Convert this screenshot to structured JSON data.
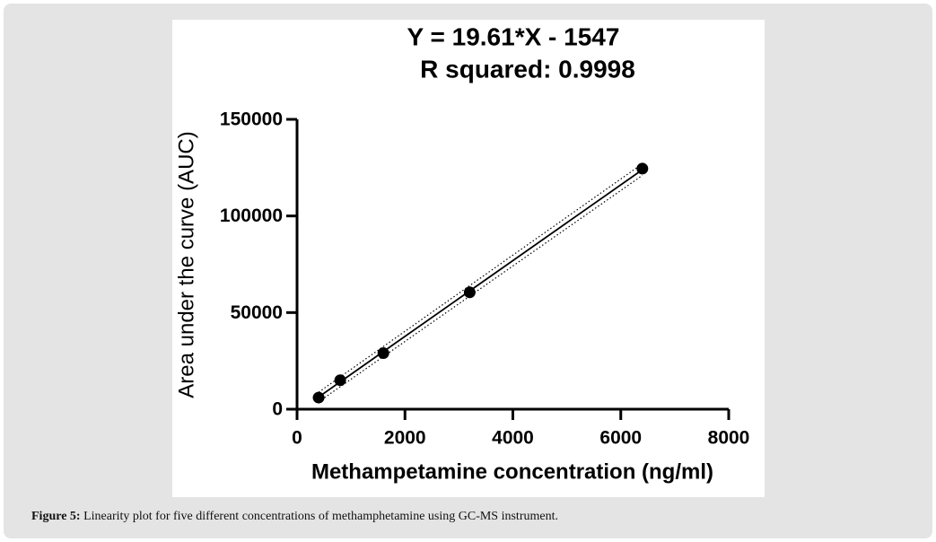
{
  "chart_data": {
    "type": "scatter",
    "title": "Y = 19.61*X - 1547",
    "subtitle": "R squared: 0.9998",
    "x_label": "Methampetamine concentration (ng/ml)",
    "y_label": "Area under the curve (AUC)",
    "x": [
      400,
      800,
      1600,
      3200,
      6400
    ],
    "values": [
      6000,
      15000,
      29000,
      60500,
      124500
    ],
    "color": "#000000",
    "fit": {
      "x": [
        400,
        6400
      ],
      "values": [
        6297,
        123957
      ]
    },
    "band_upper": {
      "x": [
        400,
        6400
      ],
      "values": [
        8800,
        127000
      ]
    },
    "band_lower": {
      "x": [
        400,
        6400
      ],
      "values": [
        3800,
        121000
      ]
    },
    "xlim": [
      0,
      8000
    ],
    "xticks": [
      0,
      2000,
      4000,
      6000,
      8000
    ],
    "ylim": [
      0,
      150000
    ],
    "yticks": [
      0,
      50000,
      100000,
      150000
    ]
  },
  "caption": {
    "label": "Figure 5:",
    "text": "Linearity plot for five different concentrations of methamphetamine using GC-MS instrument."
  }
}
